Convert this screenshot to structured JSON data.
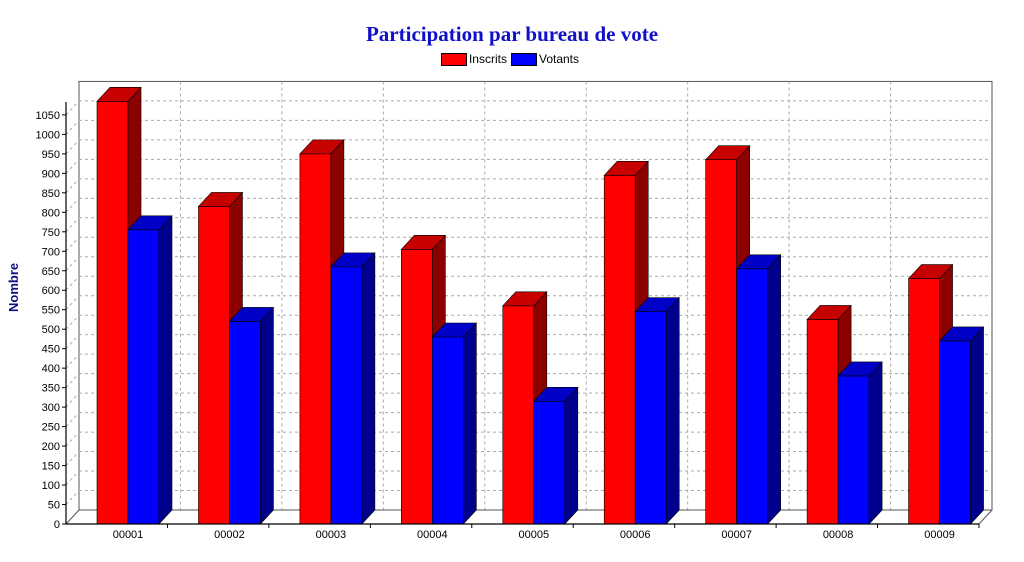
{
  "chart_data": {
    "type": "bar",
    "title": "Participation par bureau de vote",
    "ylabel": "Nombre",
    "xlabel": "",
    "categories": [
      "00001",
      "00002",
      "00003",
      "00004",
      "00005",
      "00006",
      "00007",
      "00008",
      "00009"
    ],
    "series": [
      {
        "name": "Inscrits",
        "values": [
          1085,
          815,
          950,
          705,
          560,
          895,
          935,
          525,
          630
        ],
        "color": "#ff0000"
      },
      {
        "name": "Votants",
        "values": [
          755,
          520,
          660,
          480,
          315,
          545,
          655,
          380,
          470
        ],
        "color": "#0000ff"
      }
    ],
    "ylim": [
      0,
      1100
    ],
    "yticks": [
      0,
      50,
      100,
      150,
      200,
      250,
      300,
      350,
      400,
      450,
      500,
      550,
      600,
      650,
      700,
      750,
      800,
      850,
      900,
      950,
      1000,
      1050
    ],
    "grid": true,
    "legend_position": "top-center",
    "style": "3d-bar"
  }
}
